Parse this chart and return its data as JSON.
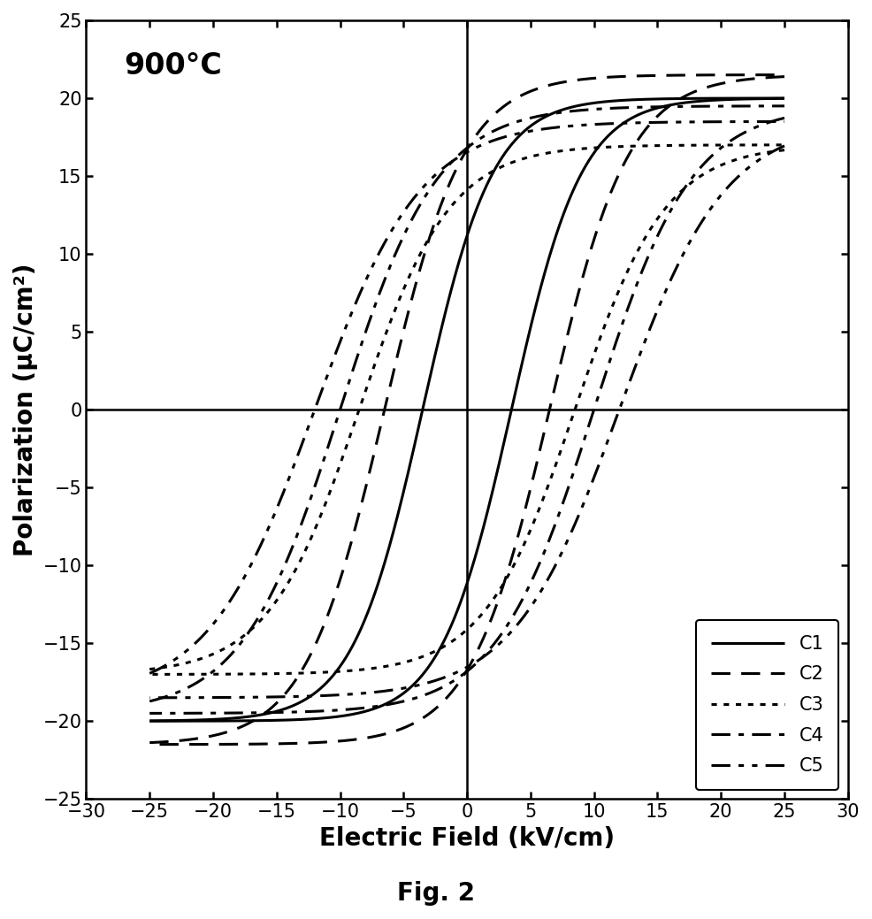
{
  "title": "900°C",
  "xlabel": "Electric Field (kV/cm)",
  "ylabel": "Polarization (μC/cm²)",
  "fig_label": "Fig. 2",
  "xlim": [
    -30,
    30
  ],
  "ylim": [
    -25,
    25
  ],
  "xticks": [
    -30,
    -25,
    -20,
    -15,
    -10,
    -5,
    0,
    5,
    10,
    15,
    20,
    25,
    30
  ],
  "yticks": [
    -25,
    -20,
    -15,
    -10,
    -5,
    0,
    5,
    10,
    15,
    20,
    25
  ],
  "curves": [
    {
      "name": "C1",
      "Ec": 3.5,
      "Pr": 10.0,
      "Pmax": 20.0,
      "Emax": 25.0,
      "steepness": 0.18,
      "linestyle": "solid",
      "linewidth": 2.2
    },
    {
      "name": "C2",
      "Ec": 6.5,
      "Pr": 13.5,
      "Pmax": 21.5,
      "Emax": 25.0,
      "steepness": 0.16,
      "linestyle": "dashed",
      "linewidth": 2.2
    },
    {
      "name": "C3",
      "Ec": 8.5,
      "Pr": 14.5,
      "Pmax": 17.0,
      "Emax": 25.0,
      "steepness": 0.14,
      "linestyle": "dotted",
      "linewidth": 2.2
    },
    {
      "name": "C4",
      "Ec": 10.0,
      "Pr": 14.5,
      "Pmax": 19.5,
      "Emax": 25.0,
      "steepness": 0.13,
      "linestyle": "dashdot",
      "linewidth": 2.2
    },
    {
      "name": "C5",
      "Ec": 12.0,
      "Pr": 15.0,
      "Pmax": 18.5,
      "Emax": 25.0,
      "steepness": 0.12,
      "linestyle": "dashdotdot",
      "linewidth": 2.2
    }
  ],
  "legend_loc": "lower right",
  "title_fontsize": 24,
  "label_fontsize": 20,
  "tick_fontsize": 15,
  "figsize": [
    9.87,
    10.39
  ],
  "dpi": 100
}
